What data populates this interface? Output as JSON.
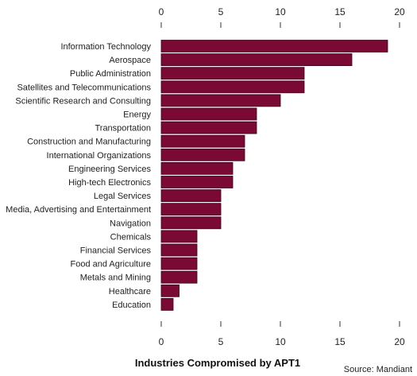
{
  "chart_data": {
    "type": "bar",
    "orientation": "horizontal",
    "title": "Industries Compromised by APT1",
    "source": "Source: Mandiant",
    "xlim": [
      0,
      20
    ],
    "ticks": [
      0,
      5,
      10,
      15,
      20
    ],
    "tick_positions": "top-and-bottom",
    "grid": false,
    "bar_color": "#7a0a34",
    "bar_edge_color": "#3d0018",
    "categories": [
      "Information Technology",
      "Aerospace",
      "Public Administration",
      "Satellites and Telecommunications",
      "Scientific Research and Consulting",
      "Energy",
      "Transportation",
      "Construction and Manufacturing",
      "International Organizations",
      "Engineering Services",
      "High-tech Electronics",
      "Legal Services",
      "Media, Advertising and Entertainment",
      "Navigation",
      "Chemicals",
      "Financial Services",
      "Food and Agriculture",
      "Metals and Mining",
      "Healthcare",
      "Education"
    ],
    "values": [
      19,
      16,
      12,
      12,
      10,
      8,
      8,
      7,
      7,
      6,
      6,
      5,
      5,
      5,
      3,
      3,
      3,
      3,
      1.5,
      1
    ]
  }
}
